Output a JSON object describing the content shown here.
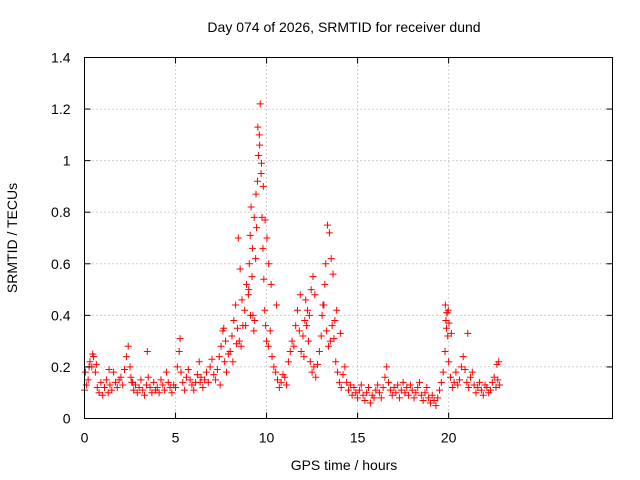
{
  "chart_data": {
    "type": "scatter",
    "title": "Day 074 of 2026, SRMTID for receiver dund",
    "xlabel": "GPS time / hours",
    "ylabel": "SRMTID / TECUs",
    "xlim": [
      0,
      29
    ],
    "ylim": [
      0,
      1.4
    ],
    "xticks": [
      0,
      5,
      10,
      15,
      20
    ],
    "yticks": [
      0,
      0.2,
      0.4,
      0.6,
      0.8,
      1,
      1.2,
      1.4
    ],
    "xtick_labels": [
      "0",
      "5",
      "10",
      "15",
      "20"
    ],
    "ytick_labels": [
      "0",
      "0.2",
      "0.4",
      "0.6",
      "0.8",
      "1",
      "1.2",
      "1.4"
    ],
    "grid": true,
    "marker": "+",
    "color": "#ff0000",
    "series": [
      {
        "name": "SRMTID",
        "x": [
          0.0,
          0.1,
          0.2,
          0.3,
          0.4,
          0.5,
          0.6,
          0.7,
          0.8,
          0.9,
          1.0,
          1.1,
          1.2,
          1.3,
          1.4,
          1.5,
          1.6,
          1.7,
          1.8,
          1.9,
          2.0,
          2.1,
          2.2,
          2.3,
          2.4,
          2.5,
          2.6,
          2.7,
          2.8,
          2.9,
          3.0,
          3.1,
          3.2,
          3.3,
          3.4,
          3.5,
          3.6,
          3.7,
          3.8,
          3.9,
          4.0,
          4.1,
          4.2,
          4.3,
          4.4,
          4.5,
          4.6,
          4.7,
          4.8,
          4.9,
          5.0,
          5.1,
          5.2,
          5.3,
          5.4,
          5.5,
          5.6,
          5.7,
          5.8,
          5.9,
          6.0,
          6.1,
          6.2,
          6.3,
          6.4,
          6.5,
          6.6,
          6.7,
          6.8,
          6.9,
          7.0,
          7.1,
          7.2,
          7.3,
          7.4,
          7.5,
          7.6,
          7.7,
          7.8,
          7.9,
          8.0,
          8.1,
          8.2,
          8.3,
          8.4,
          8.5,
          8.6,
          8.7,
          8.8,
          8.9,
          9.0,
          9.05,
          9.1,
          9.15,
          9.2,
          9.25,
          9.3,
          9.35,
          9.4,
          9.45,
          9.5,
          9.55,
          9.6,
          9.65,
          9.7,
          9.75,
          9.8,
          9.85,
          9.9,
          9.95,
          10.0,
          10.1,
          10.2,
          10.3,
          10.4,
          10.5,
          10.6,
          10.7,
          10.8,
          10.9,
          11.0,
          11.1,
          11.2,
          11.3,
          11.4,
          11.5,
          11.6,
          11.7,
          11.8,
          11.9,
          12.0,
          12.1,
          12.2,
          12.3,
          12.4,
          12.5,
          12.6,
          12.7,
          12.8,
          12.9,
          13.0,
          13.1,
          13.2,
          13.3,
          13.4,
          13.5,
          13.6,
          13.7,
          13.8,
          13.9,
          14.0,
          14.1,
          14.2,
          14.3,
          14.4,
          14.5,
          14.6,
          14.7,
          14.8,
          14.9,
          15.0,
          15.1,
          15.2,
          15.3,
          15.4,
          15.5,
          15.6,
          15.7,
          15.8,
          15.9,
          16.0,
          16.1,
          16.2,
          16.3,
          16.4,
          16.5,
          16.6,
          16.7,
          16.8,
          16.9,
          17.0,
          17.1,
          17.2,
          17.3,
          17.4,
          17.5,
          17.6,
          17.7,
          17.8,
          17.9,
          18.0,
          18.1,
          18.2,
          18.3,
          18.4,
          18.5,
          18.6,
          18.7,
          18.8,
          18.9,
          19.0,
          19.1,
          19.2,
          19.3,
          19.4,
          19.5,
          19.6,
          19.7,
          19.8,
          19.85,
          19.9,
          19.95,
          20.0,
          20.1,
          20.2,
          20.3,
          20.4,
          20.5,
          20.6,
          20.7,
          20.8,
          20.9,
          21.0,
          21.1,
          21.2,
          21.3,
          21.4,
          21.5,
          21.6,
          21.7,
          21.8,
          21.9,
          22.0,
          22.1,
          22.2,
          22.3,
          22.4,
          22.5,
          22.6,
          22.7,
          22.8,
          0.05,
          0.25,
          0.45,
          0.65,
          1.35,
          2.55,
          2.65,
          3.45,
          5.25,
          6.35,
          7.45,
          7.65,
          7.75,
          8.15,
          8.35,
          8.45,
          8.55,
          8.65,
          8.85,
          9.02,
          9.12,
          9.22,
          9.32,
          9.42,
          9.52,
          9.62,
          9.72,
          9.82,
          9.92,
          10.02,
          10.12,
          10.25,
          10.55,
          11.85,
          12.05,
          12.15,
          12.25,
          12.35,
          12.45,
          12.55,
          12.65,
          13.05,
          13.15,
          13.25,
          13.35,
          13.45,
          13.55,
          13.65,
          13.75,
          13.85,
          14.05,
          19.82,
          19.88,
          19.92,
          19.98,
          20.02,
          20.15,
          21.05,
          22.65,
          22.75
        ],
        "y": [
          0.11,
          0.13,
          0.15,
          0.22,
          0.2,
          0.24,
          0.18,
          0.12,
          0.1,
          0.14,
          0.09,
          0.12,
          0.15,
          0.1,
          0.13,
          0.11,
          0.18,
          0.14,
          0.12,
          0.15,
          0.16,
          0.13,
          0.19,
          0.24,
          0.28,
          0.2,
          0.14,
          0.11,
          0.13,
          0.1,
          0.12,
          0.15,
          0.11,
          0.09,
          0.13,
          0.16,
          0.12,
          0.1,
          0.14,
          0.11,
          0.12,
          0.1,
          0.15,
          0.13,
          0.11,
          0.18,
          0.14,
          0.12,
          0.1,
          0.13,
          0.12,
          0.2,
          0.26,
          0.18,
          0.14,
          0.11,
          0.16,
          0.19,
          0.15,
          0.13,
          0.11,
          0.14,
          0.17,
          0.22,
          0.16,
          0.12,
          0.15,
          0.18,
          0.14,
          0.2,
          0.23,
          0.17,
          0.15,
          0.19,
          0.24,
          0.28,
          0.34,
          0.22,
          0.18,
          0.25,
          0.26,
          0.32,
          0.38,
          0.44,
          0.35,
          0.3,
          0.28,
          0.36,
          0.42,
          0.52,
          0.48,
          0.6,
          0.71,
          0.82,
          0.55,
          0.4,
          0.34,
          0.38,
          0.62,
          0.74,
          0.92,
          1.02,
          1.1,
          1.22,
          0.95,
          0.78,
          0.66,
          0.54,
          0.42,
          0.36,
          0.3,
          0.28,
          0.34,
          0.24,
          0.2,
          0.18,
          0.15,
          0.12,
          0.14,
          0.17,
          0.16,
          0.13,
          0.22,
          0.26,
          0.3,
          0.28,
          0.36,
          0.42,
          0.34,
          0.26,
          0.32,
          0.38,
          0.36,
          0.3,
          0.22,
          0.18,
          0.2,
          0.16,
          0.21,
          0.26,
          0.32,
          0.44,
          0.52,
          0.34,
          0.28,
          0.3,
          0.36,
          0.31,
          0.22,
          0.18,
          0.14,
          0.12,
          0.17,
          0.2,
          0.14,
          0.11,
          0.13,
          0.09,
          0.12,
          0.1,
          0.08,
          0.11,
          0.13,
          0.09,
          0.07,
          0.1,
          0.12,
          0.06,
          0.09,
          0.08,
          0.11,
          0.13,
          0.1,
          0.08,
          0.12,
          0.16,
          0.2,
          0.14,
          0.11,
          0.09,
          0.12,
          0.1,
          0.13,
          0.08,
          0.11,
          0.14,
          0.1,
          0.12,
          0.09,
          0.13,
          0.11,
          0.08,
          0.1,
          0.12,
          0.14,
          0.09,
          0.07,
          0.1,
          0.12,
          0.08,
          0.06,
          0.09,
          0.07,
          0.05,
          0.08,
          0.11,
          0.14,
          0.18,
          0.26,
          0.38,
          0.41,
          0.32,
          0.22,
          0.16,
          0.12,
          0.14,
          0.18,
          0.13,
          0.15,
          0.2,
          0.24,
          0.19,
          0.14,
          0.12,
          0.16,
          0.18,
          0.13,
          0.1,
          0.12,
          0.14,
          0.11,
          0.09,
          0.13,
          0.12,
          0.1,
          0.11,
          0.14,
          0.16,
          0.12,
          0.15,
          0.13,
          0.18,
          0.2,
          0.25,
          0.21,
          0.19,
          0.16,
          0.14,
          0.26,
          0.31,
          0.14,
          0.13,
          0.35,
          0.3,
          0.22,
          0.29,
          0.7,
          0.58,
          0.46,
          0.36,
          0.5,
          0.4,
          0.66,
          0.78,
          0.87,
          1.13,
          1.06,
          0.99,
          0.9,
          0.77,
          0.7,
          0.6,
          0.52,
          0.44,
          0.48,
          0.24,
          0.46,
          0.42,
          0.4,
          0.5,
          0.55,
          0.48,
          0.4,
          0.44,
          0.6,
          0.75,
          0.72,
          0.62,
          0.56,
          0.38,
          0.42,
          0.33,
          0.44,
          0.35,
          0.41,
          0.42,
          0.37,
          0.33,
          0.33,
          0.21,
          0.22
        ]
      }
    ]
  }
}
